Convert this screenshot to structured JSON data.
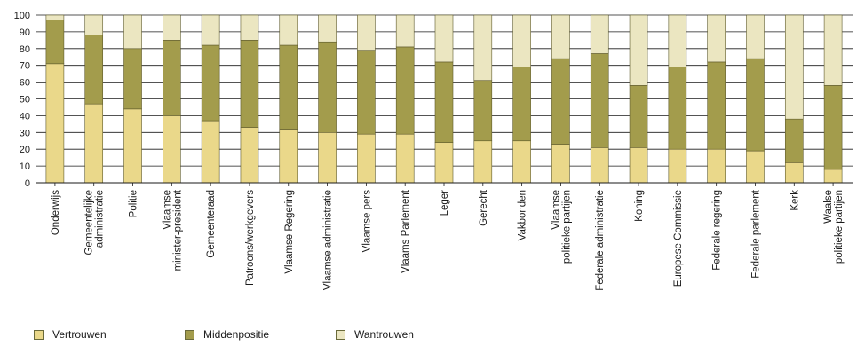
{
  "chart_data": {
    "type": "bar",
    "stacked": true,
    "categories": [
      "Onderwijs",
      "Gemeentelijke\nadministratie",
      "Politie",
      "Vlaamse\nminister-president",
      "Gemeenteraad",
      "Patroons/werkgevers",
      "Vlaamse Regering",
      "Vlaamse administratie",
      "Vlaamse pers",
      "Vlaams Parlement",
      "Leger",
      "Gerecht",
      "Vakbonden",
      "Vlaamse\npolitieke partijen",
      "Federale administratie",
      "Koning",
      "Europese Commissie",
      "Federale regering",
      "Federale parlement",
      "Kerk",
      "Waalse\npolitieke partijen"
    ],
    "series": [
      {
        "name": "Vertrouwen",
        "color": "#ead88a",
        "values": [
          71,
          47,
          44,
          40,
          37,
          33,
          32,
          30,
          29,
          29,
          24,
          25,
          25,
          23,
          21,
          21,
          20,
          20,
          19,
          12,
          8
        ]
      },
      {
        "name": "Middenpositie",
        "color": "#a39c4c",
        "values": [
          26,
          41,
          36,
          45,
          45,
          52,
          50,
          54,
          50,
          52,
          48,
          36,
          44,
          51,
          56,
          37,
          49,
          52,
          55,
          26,
          50
        ]
      },
      {
        "name": "Wantrouwen",
        "color": "#ebe6c1",
        "values": [
          3,
          12,
          20,
          15,
          18,
          15,
          18,
          16,
          21,
          19,
          28,
          39,
          31,
          26,
          23,
          42,
          31,
          28,
          26,
          62,
          42
        ]
      }
    ],
    "ylim": [
      0,
      100
    ],
    "yticks": [
      0,
      10,
      20,
      30,
      40,
      50,
      60,
      70,
      80,
      90,
      100
    ],
    "grid": true,
    "legend_position": "bottom-left"
  }
}
